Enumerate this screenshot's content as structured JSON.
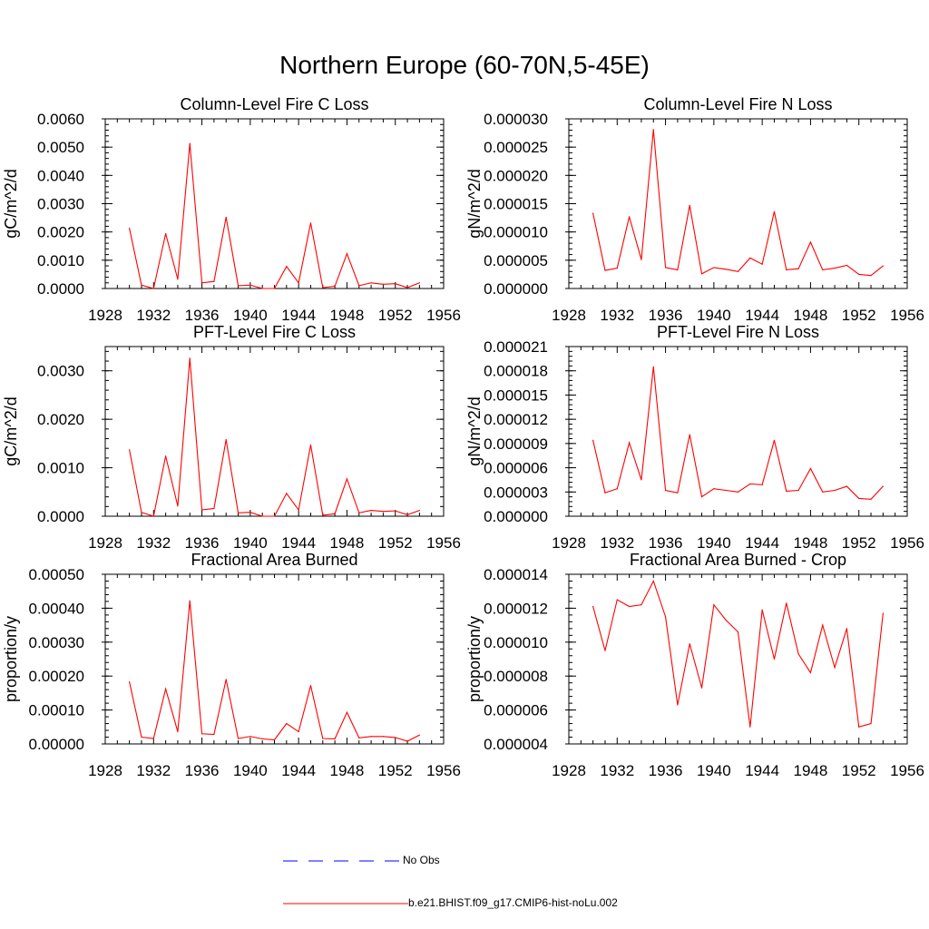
{
  "figure": {
    "title": "Northern Europe (60-70N,5-45E)"
  },
  "colors": {
    "model_line": "#ff0000",
    "obs_line": "#0000ff",
    "axis": "#000000"
  },
  "legend": {
    "obs_label": "No Obs",
    "model_label": "b.e21.BHIST.f09_g17.CMIP6-hist-noLu.002"
  },
  "chart_data": [
    {
      "type": "line",
      "title": "Column-Level Fire C Loss",
      "ylabel": "gC/m^2/d",
      "xlabel": "",
      "xlim": [
        1928,
        1956
      ],
      "ylim": [
        0,
        0.006
      ],
      "xticks": [
        "1928",
        "1932",
        "1936",
        "1940",
        "1944",
        "1948",
        "1952",
        "1956"
      ],
      "yticks": [
        "0.0000",
        "0.0010",
        "0.0020",
        "0.0030",
        "0.0040",
        "0.0050",
        "0.0060"
      ],
      "x": [
        1930,
        1931,
        1932,
        1933,
        1934,
        1935,
        1936,
        1937,
        1938,
        1939,
        1940,
        1941,
        1942,
        1943,
        1944,
        1945,
        1946,
        1947,
        1948,
        1949,
        1950,
        1951,
        1952,
        1953,
        1954
      ],
      "series": [
        {
          "name": "b.e21.BHIST.f09_g17.CMIP6-hist-noLu.002",
          "values": [
            0.00213,
            0.00012,
            0.0,
            0.00194,
            0.00033,
            0.00513,
            0.0002,
            0.00025,
            0.00252,
            0.0001,
            0.00012,
            0.0,
            0.0,
            0.00078,
            0.0002,
            0.00232,
            3e-05,
            8e-05,
            0.00123,
            0.0001,
            0.0002,
            0.00015,
            0.00017,
            3e-05,
            0.0002
          ]
        }
      ]
    },
    {
      "type": "line",
      "title": "Column-Level Fire N Loss",
      "ylabel": "gN/m^2/d",
      "xlabel": "",
      "xlim": [
        1928,
        1956
      ],
      "ylim": [
        0,
        3e-05
      ],
      "xticks": [
        "1928",
        "1932",
        "1936",
        "1940",
        "1944",
        "1948",
        "1952",
        "1956"
      ],
      "yticks": [
        "0.000000",
        "0.000005",
        "0.000010",
        "0.000015",
        "0.000020",
        "0.000025",
        "0.000030"
      ],
      "x": [
        1930,
        1931,
        1932,
        1933,
        1934,
        1935,
        1936,
        1937,
        1938,
        1939,
        1940,
        1941,
        1942,
        1943,
        1944,
        1945,
        1946,
        1947,
        1948,
        1949,
        1950,
        1951,
        1952,
        1953,
        1954
      ],
      "series": [
        {
          "name": "b.e21.BHIST.f09_g17.CMIP6-hist-noLu.002",
          "values": [
            1.33e-05,
            3.2e-06,
            3.6e-06,
            1.27e-05,
            5.1e-06,
            2.81e-05,
            3.7e-06,
            3.3e-06,
            1.47e-05,
            2.6e-06,
            3.7e-06,
            3.4e-06,
            3e-06,
            5.4e-06,
            4.3e-06,
            1.36e-05,
            3.3e-06,
            3.5e-06,
            8.2e-06,
            3.3e-06,
            3.6e-06,
            4.1e-06,
            2.5e-06,
            2.3e-06,
            4e-06
          ]
        }
      ]
    },
    {
      "type": "line",
      "title": "PFT-Level Fire C Loss",
      "ylabel": "gC/m^2/d",
      "xlabel": "",
      "xlim": [
        1928,
        1956
      ],
      "ylim": [
        0,
        0.0035
      ],
      "xticks": [
        "1928",
        "1932",
        "1936",
        "1940",
        "1944",
        "1948",
        "1952",
        "1956"
      ],
      "yticks": [
        "0.0000",
        "0.0010",
        "0.0020",
        "0.0030"
      ],
      "ytick_values": [
        0,
        0.001,
        0.002,
        0.003
      ],
      "x": [
        1930,
        1931,
        1932,
        1933,
        1934,
        1935,
        1936,
        1937,
        1938,
        1939,
        1940,
        1941,
        1942,
        1943,
        1944,
        1945,
        1946,
        1947,
        1948,
        1949,
        1950,
        1951,
        1952,
        1953,
        1954
      ],
      "series": [
        {
          "name": "b.e21.BHIST.f09_g17.CMIP6-hist-noLu.002",
          "values": [
            0.00137,
            8e-05,
            0.0,
            0.00124,
            0.00021,
            0.00326,
            0.00013,
            0.00016,
            0.00158,
            7e-05,
            8e-05,
            0.0,
            0.0,
            0.00047,
            0.00013,
            0.00147,
            2e-05,
            5e-05,
            0.00077,
            7e-05,
            0.00012,
            0.0001,
            0.00011,
            3e-05,
            0.00012
          ]
        }
      ]
    },
    {
      "type": "line",
      "title": "PFT-Level Fire N Loss",
      "ylabel": "gN/m^2/d",
      "xlabel": "",
      "xlim": [
        1928,
        1956
      ],
      "ylim": [
        0,
        2.1e-05
      ],
      "xticks": [
        "1928",
        "1932",
        "1936",
        "1940",
        "1944",
        "1948",
        "1952",
        "1956"
      ],
      "yticks": [
        "0.000000",
        "0.000003",
        "0.000006",
        "0.000009",
        "0.000012",
        "0.000015",
        "0.000018",
        "0.000021"
      ],
      "x": [
        1930,
        1931,
        1932,
        1933,
        1934,
        1935,
        1936,
        1937,
        1938,
        1939,
        1940,
        1941,
        1942,
        1943,
        1944,
        1945,
        1946,
        1947,
        1948,
        1949,
        1950,
        1951,
        1952,
        1953,
        1954
      ],
      "series": [
        {
          "name": "b.e21.BHIST.f09_g17.CMIP6-hist-noLu.002",
          "values": [
            9.4e-06,
            2.9e-06,
            3.4e-06,
            9.1e-06,
            4.5e-06,
            1.85e-05,
            3.2e-06,
            2.9e-06,
            1.01e-05,
            2.4e-06,
            3.4e-06,
            3.2e-06,
            3e-06,
            4e-06,
            3.9e-06,
            9.4e-06,
            3.1e-06,
            3.2e-06,
            5.9e-06,
            3e-06,
            3.2e-06,
            3.7e-06,
            2.2e-06,
            2.1e-06,
            3.7e-06
          ]
        }
      ]
    },
    {
      "type": "line",
      "title": "Fractional Area Burned",
      "ylabel": "proportion/y",
      "xlabel": "",
      "xlim": [
        1928,
        1956
      ],
      "ylim": [
        0,
        0.0005
      ],
      "xticks": [
        "1928",
        "1932",
        "1936",
        "1940",
        "1944",
        "1948",
        "1952",
        "1956"
      ],
      "yticks": [
        "0.00000",
        "0.00010",
        "0.00020",
        "0.00030",
        "0.00040",
        "0.00050"
      ],
      "x": [
        1930,
        1931,
        1932,
        1933,
        1934,
        1935,
        1936,
        1937,
        1938,
        1939,
        1940,
        1941,
        1942,
        1943,
        1944,
        1945,
        1946,
        1947,
        1948,
        1949,
        1950,
        1951,
        1952,
        1953,
        1954
      ],
      "series": [
        {
          "name": "b.e21.BHIST.f09_g17.CMIP6-hist-noLu.002",
          "values": [
            0.000183,
            2e-05,
            1.6e-05,
            0.000162,
            3.6e-05,
            0.000422,
            3e-05,
            2.8e-05,
            0.00019,
            1.6e-05,
            2.2e-05,
            1.5e-05,
            1.2e-05,
            6e-05,
            3.6e-05,
            0.000172,
            1.6e-05,
            1.5e-05,
            9.3e-05,
            1.8e-05,
            2.2e-05,
            2.2e-05,
            1.9e-05,
            8e-06,
            2.6e-05
          ]
        }
      ]
    },
    {
      "type": "line",
      "title": "Fractional Area Burned - Crop",
      "ylabel": "proportion/y",
      "xlabel": "",
      "xlim": [
        1928,
        1956
      ],
      "ylim": [
        4e-06,
        1.4e-05
      ],
      "xticks": [
        "1928",
        "1932",
        "1936",
        "1940",
        "1944",
        "1948",
        "1952",
        "1956"
      ],
      "yticks": [
        "0.000004",
        "0.000006",
        "0.000008",
        "0.000010",
        "0.000012",
        "0.000014"
      ],
      "x": [
        1930,
        1931,
        1932,
        1933,
        1934,
        1935,
        1936,
        1937,
        1938,
        1939,
        1940,
        1941,
        1942,
        1943,
        1944,
        1945,
        1946,
        1947,
        1948,
        1949,
        1950,
        1951,
        1952,
        1953,
        1954
      ],
      "series": [
        {
          "name": "b.e21.BHIST.f09_g17.CMIP6-hist-noLu.002",
          "values": [
            1.21e-05,
            9.5e-06,
            1.25e-05,
            1.21e-05,
            1.22e-05,
            1.36e-05,
            1.15e-05,
            6.3e-06,
            9.9e-06,
            7.3e-06,
            1.22e-05,
            1.13e-05,
            1.06e-05,
            5e-06,
            1.19e-05,
            9e-06,
            1.23e-05,
            9.3e-06,
            8.2e-06,
            1.1e-05,
            8.5e-06,
            1.08e-05,
            5e-06,
            5.2e-06,
            1.17e-05
          ]
        }
      ]
    }
  ]
}
